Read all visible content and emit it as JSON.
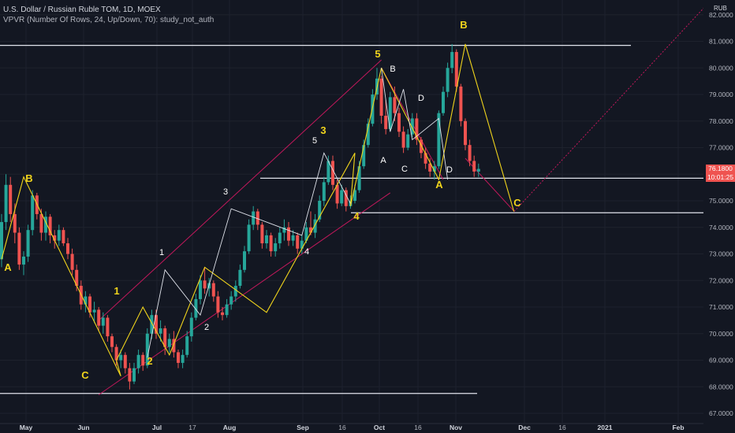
{
  "header": {
    "title": "U.S. Dollar / Russian Ruble TOM, 1D, MOEX",
    "indicator": "VPVR (Number Of Rows, 24, Up/Down, 70): study_not_auth"
  },
  "currency": "RUB",
  "price_scale": {
    "last_price": "76.1800",
    "countdown": "10:01:25"
  },
  "colors": {
    "background": "#131722",
    "up": "#26a69a",
    "down": "#ef5350",
    "wave_yellow": "#f0d41c",
    "channel_red": "#c2185b",
    "support_white": "#e0e3eb"
  },
  "chart_data": {
    "type": "candlestick",
    "symbol": "USDRUB_TOM",
    "timeframe": "1D",
    "exchange": "MOEX",
    "ylim": [
      67,
      82
    ],
    "y_ticks": [
      "82.0000",
      "81.0000",
      "80.0000",
      "79.0000",
      "78.0000",
      "77.0000",
      "76.0000",
      "75.0000",
      "74.0000",
      "73.0000",
      "72.0000",
      "71.0000",
      "70.0000",
      "69.0000",
      "68.0000",
      "67.0000"
    ],
    "x_ticks": [
      "May",
      "Jun",
      "Jul",
      "17",
      "Aug",
      "Sep",
      "16",
      "Oct",
      "16",
      "Nov",
      "Dec",
      "16",
      "2021",
      "Feb"
    ],
    "candles": [
      [
        72.8,
        74.5,
        72.5,
        74.2
      ],
      [
        74.2,
        76.0,
        73.9,
        75.6
      ],
      [
        75.6,
        75.9,
        74.2,
        74.5
      ],
      [
        74.5,
        74.9,
        73.4,
        73.8
      ],
      [
        73.8,
        74.0,
        72.4,
        72.6
      ],
      [
        72.6,
        73.1,
        72.2,
        72.9
      ],
      [
        72.9,
        74.1,
        72.7,
        73.9
      ],
      [
        73.9,
        75.4,
        73.7,
        75.2
      ],
      [
        75.2,
        75.3,
        74.3,
        74.5
      ],
      [
        74.5,
        74.7,
        73.5,
        73.8
      ],
      [
        73.8,
        74.6,
        73.5,
        74.4
      ],
      [
        74.4,
        74.5,
        73.4,
        73.7
      ],
      [
        73.7,
        73.9,
        73.2,
        73.5
      ],
      [
        73.5,
        74.1,
        73.3,
        73.9
      ],
      [
        73.9,
        74.0,
        73.3,
        73.4
      ],
      [
        73.4,
        73.6,
        72.8,
        73.0
      ],
      [
        73.0,
        73.2,
        72.2,
        72.4
      ],
      [
        72.4,
        72.6,
        71.6,
        71.8
      ],
      [
        71.8,
        72.0,
        70.9,
        71.1
      ],
      [
        71.1,
        71.6,
        70.8,
        71.4
      ],
      [
        71.4,
        71.5,
        70.6,
        70.8
      ],
      [
        70.8,
        71.2,
        70.4,
        70.9
      ],
      [
        70.9,
        71.0,
        70.1,
        70.3
      ],
      [
        70.3,
        70.8,
        70.0,
        70.6
      ],
      [
        70.6,
        70.7,
        69.7,
        69.9
      ],
      [
        69.9,
        70.0,
        69.3,
        69.5
      ],
      [
        69.5,
        69.6,
        68.8,
        69.0
      ],
      [
        69.0,
        69.4,
        68.7,
        69.2
      ],
      [
        69.2,
        69.3,
        68.5,
        68.7
      ],
      [
        68.7,
        68.9,
        67.9,
        68.2
      ],
      [
        68.2,
        68.9,
        68.1,
        68.7
      ],
      [
        68.7,
        69.4,
        68.5,
        69.2
      ],
      [
        69.2,
        69.3,
        68.6,
        68.8
      ],
      [
        68.8,
        70.2,
        68.7,
        70.0
      ],
      [
        70.0,
        70.9,
        69.8,
        70.7
      ],
      [
        70.7,
        70.9,
        69.8,
        70.0
      ],
      [
        70.0,
        70.5,
        69.7,
        70.2
      ],
      [
        70.2,
        70.3,
        69.2,
        69.5
      ],
      [
        69.5,
        70.0,
        69.3,
        69.8
      ],
      [
        69.8,
        70.1,
        69.1,
        69.3
      ],
      [
        69.3,
        69.4,
        68.7,
        68.9
      ],
      [
        68.9,
        69.4,
        68.7,
        69.2
      ],
      [
        69.2,
        70.1,
        69.1,
        69.9
      ],
      [
        69.9,
        70.8,
        69.7,
        70.6
      ],
      [
        70.6,
        71.5,
        70.5,
        71.3
      ],
      [
        71.3,
        72.2,
        71.1,
        72.0
      ],
      [
        72.0,
        72.5,
        71.5,
        71.7
      ],
      [
        71.7,
        72.1,
        71.4,
        71.9
      ],
      [
        71.9,
        72.0,
        71.2,
        71.4
      ],
      [
        71.4,
        71.6,
        70.6,
        70.8
      ],
      [
        70.8,
        71.0,
        70.5,
        70.7
      ],
      [
        70.7,
        71.3,
        70.6,
        71.1
      ],
      [
        71.1,
        71.6,
        70.9,
        71.4
      ],
      [
        71.4,
        72.0,
        71.2,
        71.8
      ],
      [
        71.8,
        72.6,
        71.7,
        72.4
      ],
      [
        72.4,
        73.3,
        72.3,
        73.1
      ],
      [
        73.1,
        74.3,
        73.0,
        74.1
      ],
      [
        74.1,
        74.8,
        73.9,
        74.6
      ],
      [
        74.6,
        74.7,
        73.9,
        74.1
      ],
      [
        74.1,
        74.2,
        73.2,
        73.4
      ],
      [
        73.4,
        73.9,
        73.2,
        73.7
      ],
      [
        73.7,
        73.8,
        72.9,
        73.1
      ],
      [
        73.1,
        73.6,
        72.9,
        73.4
      ],
      [
        73.4,
        74.0,
        73.2,
        73.8
      ],
      [
        73.8,
        74.3,
        73.5,
        74.0
      ],
      [
        74.0,
        74.2,
        73.3,
        73.5
      ],
      [
        73.5,
        73.9,
        73.3,
        73.7
      ],
      [
        73.7,
        73.8,
        73.0,
        73.2
      ],
      [
        73.2,
        73.7,
        73.0,
        73.5
      ],
      [
        73.5,
        74.2,
        73.4,
        74.0
      ],
      [
        74.0,
        74.6,
        73.7,
        73.8
      ],
      [
        73.8,
        74.5,
        73.6,
        74.3
      ],
      [
        74.3,
        75.2,
        74.2,
        75.0
      ],
      [
        75.0,
        75.9,
        74.8,
        75.7
      ],
      [
        75.7,
        76.7,
        75.6,
        76.5
      ],
      [
        76.5,
        76.7,
        75.4,
        75.6
      ],
      [
        75.6,
        75.8,
        74.7,
        74.9
      ],
      [
        74.9,
        75.6,
        74.8,
        75.4
      ],
      [
        75.4,
        75.5,
        74.6,
        74.8
      ],
      [
        74.8,
        75.2,
        74.7,
        75.0
      ],
      [
        75.0,
        75.6,
        74.9,
        75.4
      ],
      [
        75.4,
        76.5,
        75.3,
        76.3
      ],
      [
        76.3,
        77.3,
        76.2,
        77.1
      ],
      [
        77.1,
        78.1,
        77.0,
        77.9
      ],
      [
        77.9,
        79.2,
        77.8,
        79.0
      ],
      [
        79.0,
        80.0,
        78.8,
        79.6
      ],
      [
        79.6,
        79.7,
        77.9,
        78.2
      ],
      [
        78.2,
        78.8,
        77.5,
        77.7
      ],
      [
        77.7,
        79.1,
        77.6,
        78.9
      ],
      [
        78.9,
        79.3,
        78.0,
        78.3
      ],
      [
        78.3,
        78.5,
        77.4,
        77.6
      ],
      [
        77.6,
        77.8,
        76.8,
        77.0
      ],
      [
        77.0,
        77.7,
        76.9,
        77.5
      ],
      [
        77.5,
        78.3,
        77.4,
        78.1
      ],
      [
        78.1,
        78.3,
        77.1,
        77.3
      ],
      [
        77.3,
        77.4,
        76.6,
        76.8
      ],
      [
        76.8,
        77.0,
        76.2,
        76.4
      ],
      [
        76.4,
        76.6,
        75.9,
        76.1
      ],
      [
        76.1,
        76.5,
        75.8,
        76.3
      ],
      [
        76.3,
        78.4,
        76.2,
        78.3
      ],
      [
        78.3,
        79.3,
        78.2,
        79.1
      ],
      [
        79.1,
        80.2,
        78.9,
        80.0
      ],
      [
        80.0,
        80.9,
        79.8,
        80.6
      ],
      [
        80.6,
        80.7,
        79.1,
        79.3
      ],
      [
        79.3,
        79.4,
        77.8,
        78.0
      ],
      [
        78.0,
        78.1,
        76.9,
        77.1
      ],
      [
        77.1,
        77.3,
        76.3,
        76.5
      ],
      [
        76.5,
        76.7,
        75.9,
        76.1
      ],
      [
        76.1,
        76.4,
        75.9,
        76.2
      ]
    ],
    "horizontal_levels": [
      80.85,
      75.85,
      74.55,
      67.75
    ],
    "wave_labels": [
      {
        "text": "A",
        "color": "yellow",
        "price": 72.8
      },
      {
        "text": "B",
        "color": "yellow",
        "price": 75.9
      },
      {
        "text": "C",
        "color": "yellow",
        "price": 68.4
      },
      {
        "text": "1",
        "color": "yellow",
        "price": 71.4
      },
      {
        "text": "2",
        "color": "yellow",
        "price": 68.7
      },
      {
        "text": "1",
        "color": "white",
        "price": 73.0
      },
      {
        "text": "2",
        "color": "white",
        "price": 70.2
      },
      {
        "text": "3",
        "color": "white",
        "price": 75.3
      },
      {
        "text": "4",
        "color": "white",
        "price": 72.8
      },
      {
        "text": "5",
        "color": "white",
        "price": 77.3
      },
      {
        "text": "3",
        "color": "yellow",
        "price": 77.6
      },
      {
        "text": "4",
        "color": "yellow",
        "price": 74.3
      },
      {
        "text": "5",
        "color": "yellow",
        "price": 80.4
      },
      {
        "text": "B",
        "color": "white",
        "price": 80.0
      },
      {
        "text": "A",
        "color": "white",
        "price": 76.6
      },
      {
        "text": "C",
        "color": "white",
        "price": 76.2
      },
      {
        "text": "D",
        "color": "white",
        "price": 78.7
      },
      {
        "text": "D",
        "color": "white",
        "price": 75.9
      },
      {
        "text": "A",
        "color": "yellow",
        "price": 75.6
      },
      {
        "text": "B",
        "color": "yellow",
        "price": 81.4
      },
      {
        "text": "C",
        "color": "yellow",
        "price": 74.8
      }
    ]
  }
}
